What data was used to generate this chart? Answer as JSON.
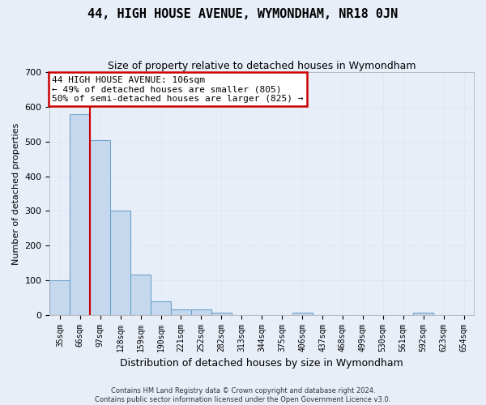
{
  "title": "44, HIGH HOUSE AVENUE, WYMONDHAM, NR18 0JN",
  "subtitle": "Size of property relative to detached houses in Wymondham",
  "xlabel": "Distribution of detached houses by size in Wymondham",
  "ylabel": "Number of detached properties",
  "bin_labels": [
    "35sqm",
    "66sqm",
    "97sqm",
    "128sqm",
    "159sqm",
    "190sqm",
    "221sqm",
    "252sqm",
    "282sqm",
    "313sqm",
    "344sqm",
    "375sqm",
    "406sqm",
    "437sqm",
    "468sqm",
    "499sqm",
    "530sqm",
    "561sqm",
    "592sqm",
    "623sqm",
    "654sqm"
  ],
  "bar_heights": [
    100,
    580,
    505,
    300,
    115,
    38,
    15,
    15,
    7,
    0,
    0,
    0,
    7,
    0,
    0,
    0,
    0,
    0,
    7,
    0,
    0
  ],
  "bar_color": "#c5d8ee",
  "bar_edge_color": "#6ba3cc",
  "grid_color": "#dce8f4",
  "vline_bin_index": 2,
  "vline_color": "#cc0000",
  "annotation_text": "44 HIGH HOUSE AVENUE: 106sqm\n← 49% of detached houses are smaller (805)\n50% of semi-detached houses are larger (825) →",
  "annotation_box_color": "white",
  "annotation_box_edge_color": "#cc0000",
  "ylim": [
    0,
    700
  ],
  "yticks": [
    0,
    100,
    200,
    300,
    400,
    500,
    600,
    700
  ],
  "footer_text": "Contains HM Land Registry data © Crown copyright and database right 2024.\nContains public sector information licensed under the Open Government Licence v3.0.",
  "bg_color": "#e8eef8",
  "plot_bg_color": "#e8eef8",
  "title_fontsize": 11,
  "subtitle_fontsize": 9,
  "ylabel_fontsize": 8,
  "xlabel_fontsize": 9
}
